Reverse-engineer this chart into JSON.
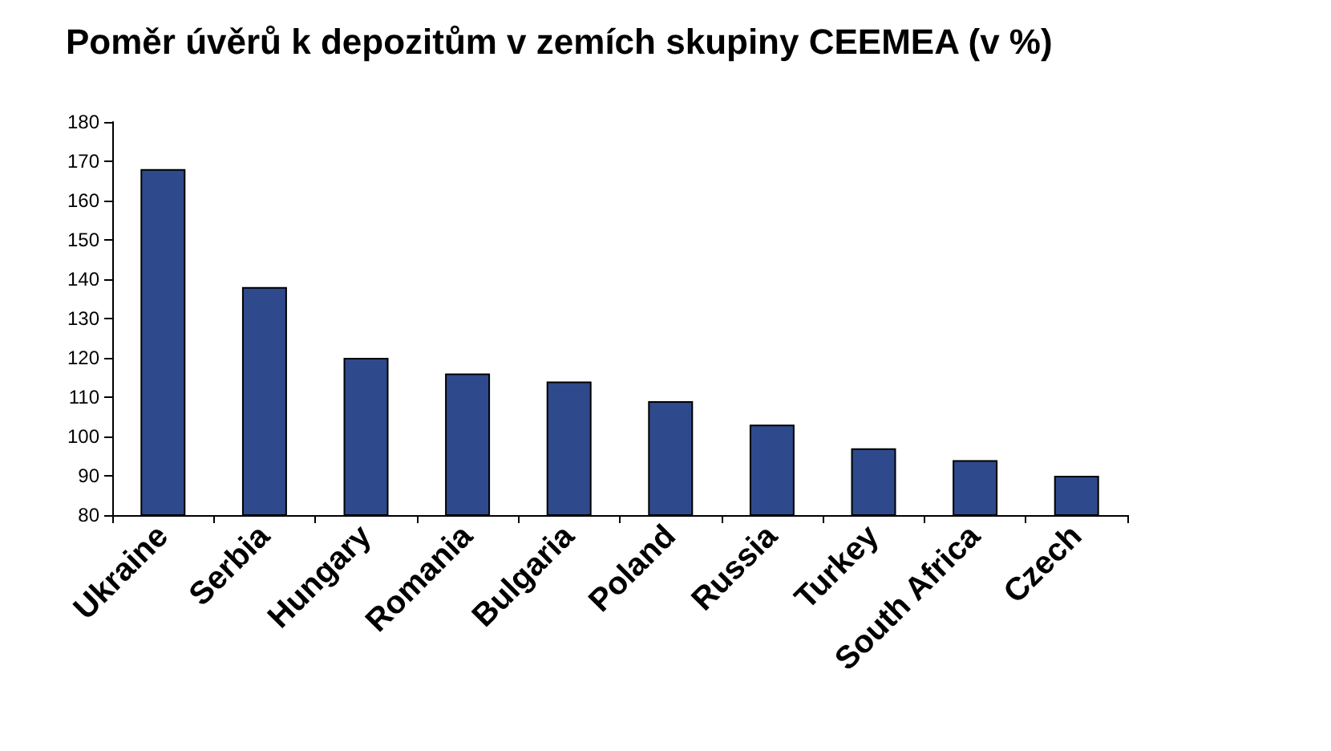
{
  "chart_data": {
    "type": "bar",
    "title": "Poměr úvěrů k depozitům v zemích skupiny CEEMEA (v %)",
    "categories": [
      "Ukraine",
      "Serbia",
      "Hungary",
      "Romania",
      "Bulgaria",
      "Poland",
      "Russia",
      "Turkey",
      "South Africa",
      "Czech"
    ],
    "values": [
      168,
      138,
      120,
      116,
      114,
      109,
      103,
      97,
      94,
      90
    ],
    "color": "#2e4a8c",
    "ylim": [
      80,
      180
    ],
    "yticks": [
      80,
      90,
      100,
      110,
      120,
      130,
      140,
      150,
      160,
      170,
      180
    ],
    "grid": false
  }
}
